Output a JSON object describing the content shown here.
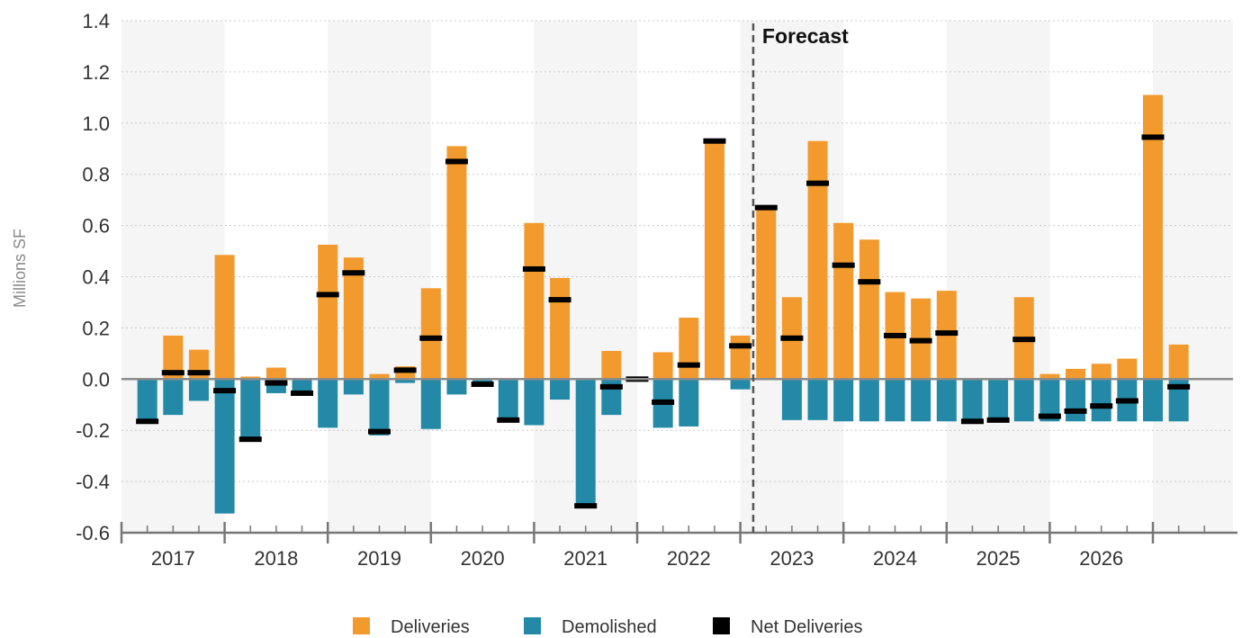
{
  "chart_data": {
    "type": "bar",
    "ylabel": "Millions SF",
    "ylim": [
      -0.6,
      1.4
    ],
    "yticks": [
      -0.6,
      -0.4,
      -0.2,
      0.0,
      0.2,
      0.4,
      0.6,
      0.8,
      1.0,
      1.2,
      1.4
    ],
    "ytick_labels": [
      "-0.6",
      "-0.4",
      "-0.2",
      "0.0",
      "0.2",
      "0.4",
      "0.6",
      "0.8",
      "1.0",
      "1.2",
      "1.4"
    ],
    "years": [
      "2017",
      "2018",
      "2019",
      "2020",
      "2021",
      "2022",
      "2023",
      "2024",
      "2025",
      "2026"
    ],
    "grid": "horizontal dotted",
    "legend_position": "bottom",
    "forecast_label": "Forecast",
    "forecast_start_index": 24,
    "series": [
      {
        "name": "Deliveries",
        "color": "#f39a2e",
        "values": [
          0.0,
          0.17,
          0.115,
          0.485,
          0.01,
          0.045,
          0.0,
          0.525,
          0.475,
          0.02,
          0.05,
          0.355,
          0.91,
          0.0,
          0.0,
          0.61,
          0.395,
          0.0,
          0.11,
          0.0,
          0.105,
          0.24,
          0.935,
          0.17,
          0.675,
          0.32,
          0.93,
          0.61,
          0.545,
          0.34,
          0.315,
          0.345,
          0.0,
          0.0,
          0.32,
          0.02,
          0.04,
          0.06,
          0.08,
          1.11,
          0.135
        ]
      },
      {
        "name": "Demolished",
        "color": "#2389a6",
        "values": [
          -0.165,
          -0.14,
          -0.085,
          -0.525,
          -0.23,
          -0.055,
          -0.05,
          -0.19,
          -0.06,
          -0.22,
          -0.015,
          -0.195,
          -0.06,
          -0.02,
          -0.155,
          -0.18,
          -0.08,
          -0.495,
          -0.14,
          0.0,
          -0.19,
          -0.185,
          0.0,
          -0.04,
          0.0,
          -0.16,
          -0.16,
          -0.165,
          -0.165,
          -0.165,
          -0.165,
          -0.165,
          -0.165,
          -0.165,
          -0.165,
          -0.165,
          -0.165,
          -0.165,
          -0.165,
          -0.165,
          -0.165
        ]
      },
      {
        "name": "Net Deliveries",
        "color": "#000000",
        "values": [
          -0.165,
          0.025,
          0.025,
          -0.045,
          -0.235,
          -0.015,
          -0.055,
          0.33,
          0.415,
          -0.205,
          0.035,
          0.16,
          0.85,
          -0.02,
          -0.16,
          0.43,
          0.31,
          -0.495,
          -0.03,
          0.0,
          -0.09,
          0.055,
          0.93,
          0.13,
          0.67,
          0.16,
          0.765,
          0.445,
          0.38,
          0.17,
          0.15,
          0.18,
          -0.165,
          -0.16,
          0.155,
          -0.145,
          -0.125,
          -0.105,
          -0.085,
          0.945,
          -0.03
        ]
      }
    ]
  }
}
